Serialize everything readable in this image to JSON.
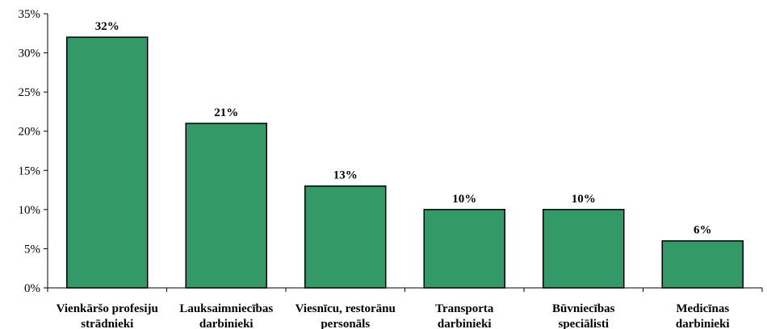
{
  "chart_data": {
    "type": "bar",
    "title": "",
    "xlabel": "",
    "ylabel": "",
    "categories": [
      [
        "Vienkāršo profesiju",
        "strādnieki"
      ],
      [
        "Lauksaimniecības",
        "darbinieki"
      ],
      [
        "Viesnīcu, restorānu",
        "personāls"
      ],
      [
        "Transporta",
        "darbinieki"
      ],
      [
        "Būvniecības",
        "speciālisti"
      ],
      [
        "Medicīnas",
        "darbinieki"
      ]
    ],
    "values": [
      32,
      21,
      13,
      10,
      10,
      6
    ],
    "data_labels": [
      "32%",
      "21%",
      "13%",
      "10%",
      "10%",
      "6%"
    ],
    "ylim": [
      0,
      35
    ],
    "yticks": [
      0,
      5,
      10,
      15,
      20,
      25,
      30,
      35
    ],
    "ytick_labels": [
      "0%",
      "5%",
      "10%",
      "15%",
      "20%",
      "25%",
      "30%",
      "35%"
    ],
    "grid": false,
    "legend": "none",
    "bar_color": "#339966",
    "bar_edge_color": "#000000"
  }
}
